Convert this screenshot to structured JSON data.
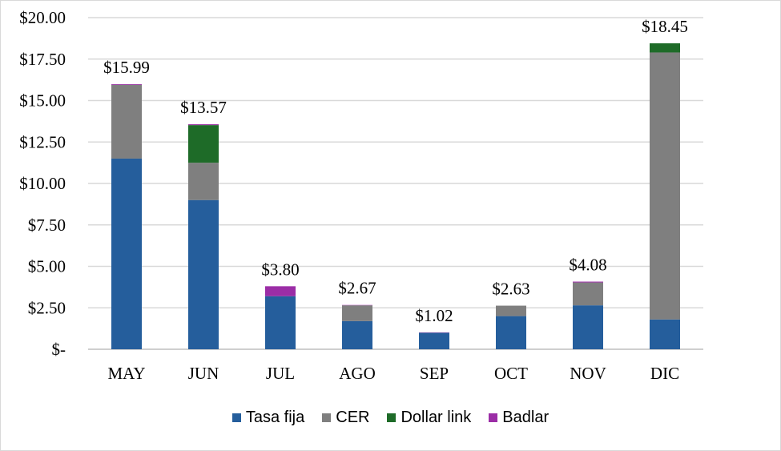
{
  "chart_data": {
    "type": "bar",
    "stacked": true,
    "categories": [
      "MAY",
      "JUN",
      "JUL",
      "AGO",
      "SEP",
      "OCT",
      "NOV",
      "DIC"
    ],
    "series": [
      {
        "name": "Tasa fija",
        "color": "#255e9c",
        "values": [
          11.5,
          9.0,
          3.2,
          1.7,
          1.0,
          2.0,
          2.65,
          1.8
        ]
      },
      {
        "name": "CER",
        "color": "#7f7f7f",
        "values": [
          4.45,
          2.25,
          0.0,
          0.95,
          0.0,
          0.63,
          1.38,
          16.1
        ]
      },
      {
        "name": "Dollar link",
        "color": "#1e6b28",
        "values": [
          0.0,
          2.27,
          0.0,
          0.0,
          0.0,
          0.0,
          0.0,
          0.55
        ]
      },
      {
        "name": "Badlar",
        "color": "#9b2da6",
        "values": [
          0.04,
          0.05,
          0.6,
          0.02,
          0.02,
          0.0,
          0.05,
          0.0
        ]
      }
    ],
    "totals": [
      "$15.99",
      "$13.57",
      "$3.80",
      "$2.67",
      "$1.02",
      "$2.63",
      "$4.08",
      "$18.45"
    ],
    "y_ticks": [
      {
        "value": 0,
        "label": "$-"
      },
      {
        "value": 2.5,
        "label": "$2.50"
      },
      {
        "value": 5,
        "label": "$5.00"
      },
      {
        "value": 7.5,
        "label": "$7.50"
      },
      {
        "value": 10,
        "label": "$10.00"
      },
      {
        "value": 12.5,
        "label": "$12.50"
      },
      {
        "value": 15,
        "label": "$15.00"
      },
      {
        "value": 17.5,
        "label": "$17.50"
      },
      {
        "value": 20,
        "label": "$20.00"
      }
    ],
    "ylim": [
      0,
      20
    ],
    "grid": true,
    "legend_position": "bottom"
  }
}
